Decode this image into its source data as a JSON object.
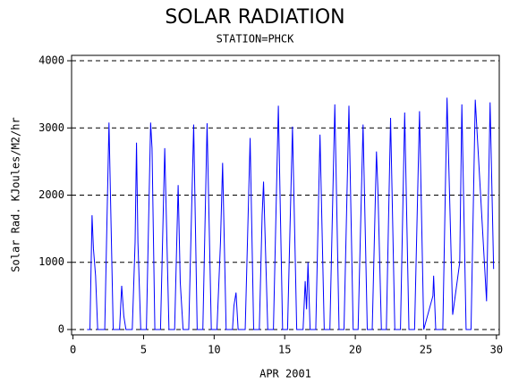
{
  "chart_data": {
    "type": "line",
    "title": "SOLAR RADIATION",
    "subtitle": "STATION=PHCK",
    "x_label": "APR 2001",
    "y_label": "Solar Rad. KJoules/M2/hr",
    "xlim": [
      -0.1,
      30.2
    ],
    "ylim": [
      -80,
      4080
    ],
    "xticks": [
      0,
      5,
      10,
      15,
      20,
      25,
      30
    ],
    "yticks": [
      0,
      1000,
      2000,
      3000,
      4000
    ],
    "grid": true,
    "series": [
      {
        "color": "#0000ff",
        "x": [
          1.0,
          1.2,
          1.35,
          1.45,
          1.6,
          1.75,
          2.25,
          2.55,
          2.85,
          3.3,
          3.45,
          3.6,
          3.75,
          4.2,
          4.4,
          4.5,
          4.6,
          4.8,
          5.2,
          5.5,
          5.6,
          5.8,
          6.2,
          6.5,
          6.8,
          7.2,
          7.45,
          7.6,
          7.8,
          8.2,
          8.55,
          8.8,
          9.2,
          9.5,
          9.8,
          10.2,
          10.45,
          10.6,
          10.85,
          11.3,
          11.4,
          11.55,
          11.7,
          12.2,
          12.55,
          12.8,
          13.2,
          13.4,
          13.5,
          13.8,
          14.2,
          14.55,
          14.85,
          15.2,
          15.55,
          15.85,
          16.3,
          16.45,
          16.55,
          16.65,
          16.8,
          17.2,
          17.5,
          17.8,
          18.2,
          18.55,
          18.85,
          19.2,
          19.55,
          19.85,
          20.2,
          20.55,
          20.85,
          21.2,
          21.5,
          21.6,
          21.85,
          22.2,
          22.5,
          22.8,
          23.2,
          23.5,
          23.8,
          24.2,
          24.55,
          24.85,
          25.5,
          25.55,
          25.7,
          26.2,
          26.5,
          26.9,
          27.4,
          27.55,
          27.85,
          28.2,
          28.5,
          29.3,
          29.55,
          29.8
        ],
        "values": [
          0,
          0,
          1700,
          1200,
          800,
          0,
          0,
          3080,
          0,
          0,
          650,
          200,
          0,
          0,
          1300,
          2780,
          1300,
          0,
          0,
          3080,
          2700,
          0,
          0,
          2700,
          0,
          0,
          2150,
          700,
          0,
          0,
          3050,
          0,
          0,
          3070,
          0,
          0,
          1300,
          2480,
          0,
          0,
          350,
          550,
          0,
          0,
          2850,
          0,
          0,
          1700,
          2200,
          0,
          0,
          3330,
          0,
          0,
          3020,
          0,
          0,
          720,
          300,
          1000,
          0,
          0,
          2900,
          0,
          0,
          3350,
          0,
          0,
          3330,
          0,
          0,
          3050,
          0,
          0,
          2650,
          2100,
          0,
          0,
          3150,
          0,
          0,
          3230,
          0,
          0,
          3250,
          0,
          500,
          800,
          0,
          0,
          3450,
          220,
          1000,
          3350,
          0,
          0,
          3420,
          420,
          3380,
          900
        ]
      }
    ]
  }
}
